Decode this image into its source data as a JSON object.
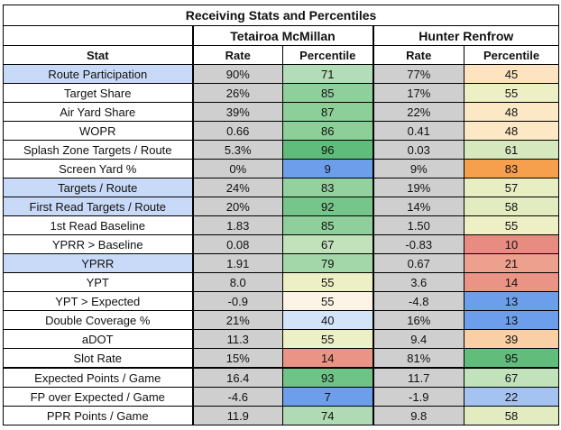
{
  "title": "Receiving Stats and Percentiles",
  "players": [
    "Tetairoa McMillan",
    "Hunter Renfrow"
  ],
  "columns": {
    "stat": "Stat",
    "p1_rate": "Rate",
    "p1_pct": "Percentile",
    "p2_rate": "Rate",
    "p2_pct": "Percentile"
  },
  "rows": [
    {
      "stat": "Route Participation",
      "hl": true,
      "p1_rate": "90%",
      "p1_pct": "71",
      "p1_color": "#b3dcb8",
      "p2_rate": "77%",
      "p2_pct": "45",
      "p2_color": "#fde3c0"
    },
    {
      "stat": "Target Share",
      "hl": false,
      "p1_rate": "26%",
      "p1_pct": "85",
      "p1_color": "#8fcf9b",
      "p2_rate": "17%",
      "p2_pct": "55",
      "p2_color": "#edefc4"
    },
    {
      "stat": "Air Yard Share",
      "hl": false,
      "p1_rate": "39%",
      "p1_pct": "87",
      "p1_color": "#8ccf99",
      "p2_rate": "22%",
      "p2_pct": "48",
      "p2_color": "#fde8c5"
    },
    {
      "stat": "WOPR",
      "hl": false,
      "p1_rate": "0.66",
      "p1_pct": "86",
      "p1_color": "#8ccf99",
      "p2_rate": "0.41",
      "p2_pct": "48",
      "p2_color": "#fde8c5"
    },
    {
      "stat": "Splash Zone Targets / Route",
      "hl": false,
      "p1_rate": "5.3%",
      "p1_pct": "96",
      "p1_color": "#5fbc7a",
      "p2_rate": "0.03",
      "p2_pct": "61",
      "p2_color": "#d6e8bd"
    },
    {
      "stat": "Screen Yard %",
      "hl": false,
      "p1_rate": "0%",
      "p1_pct": "9",
      "p1_color": "#6d9eeb",
      "p2_rate": "9%",
      "p2_pct": "83",
      "p2_color": "#f6a04d"
    },
    {
      "stat": "Targets / Route",
      "hl": true,
      "p1_rate": "24%",
      "p1_pct": "83",
      "p1_color": "#93d19e",
      "p2_rate": "19%",
      "p2_pct": "57",
      "p2_color": "#e6eec2"
    },
    {
      "stat": "First Read Targets / Route",
      "hl": true,
      "p1_rate": "20%",
      "p1_pct": "92",
      "p1_color": "#76c58a",
      "p2_rate": "14%",
      "p2_pct": "58",
      "p2_color": "#e2ecc0"
    },
    {
      "stat": "1st Read Baseline",
      "hl": false,
      "p1_rate": "1.83",
      "p1_pct": "85",
      "p1_color": "#8fcf9b",
      "p2_rate": "1.50",
      "p2_pct": "55",
      "p2_color": "#edefc4"
    },
    {
      "stat": "YPRR > Baseline",
      "hl": false,
      "p1_rate": "0.08",
      "p1_pct": "67",
      "p1_color": "#c2e2bb",
      "p2_rate": "-0.83",
      "p2_pct": "10",
      "p2_color": "#e88b80"
    },
    {
      "stat": "YPRR",
      "hl": true,
      "p1_rate": "1.91",
      "p1_pct": "79",
      "p1_color": "#a3d7a9",
      "p2_rate": "0.67",
      "p2_pct": "21",
      "p2_color": "#eea08f"
    },
    {
      "stat": "YPT",
      "hl": false,
      "p1_rate": "8.0",
      "p1_pct": "55",
      "p1_color": "#edefc4",
      "p2_rate": "3.6",
      "p2_pct": "14",
      "p2_color": "#ea9486"
    },
    {
      "stat": "YPT > Expected",
      "hl": false,
      "p1_rate": "-0.9",
      "p1_pct": "55",
      "p1_color": "#fef4e6",
      "p2_rate": "-4.8",
      "p2_pct": "13",
      "p2_color": "#6d9eeb"
    },
    {
      "stat": "Double Coverage %",
      "hl": false,
      "p1_rate": "21%",
      "p1_pct": "40",
      "p1_color": "#d3e3f8",
      "p2_rate": "16%",
      "p2_pct": "13",
      "p2_color": "#6d9eeb"
    },
    {
      "stat": "aDOT",
      "hl": false,
      "p1_rate": "11.3",
      "p1_pct": "55",
      "p1_color": "#edefc4",
      "p2_rate": "9.4",
      "p2_pct": "39",
      "p2_color": "#f9d0a5"
    },
    {
      "stat": "Slot Rate",
      "hl": false,
      "p1_rate": "15%",
      "p1_pct": "14",
      "p1_color": "#ea9486",
      "p2_rate": "81%",
      "p2_pct": "95",
      "p2_color": "#62bd7c"
    },
    {
      "stat": "Expected Points / Game",
      "hl": false,
      "p1_rate": "16.4",
      "p1_pct": "93",
      "p1_color": "#70c386",
      "p2_rate": "11.7",
      "p2_pct": "67",
      "p2_color": "#c2e2bb"
    },
    {
      "stat": "FP over Expected / Game",
      "hl": false,
      "p1_rate": "-4.6",
      "p1_pct": "7",
      "p1_color": "#6d9eeb",
      "p2_rate": "-1.9",
      "p2_pct": "22",
      "p2_color": "#a5c3f1"
    },
    {
      "stat": "PPR Points / Game",
      "hl": false,
      "p1_rate": "11.9",
      "p1_pct": "74",
      "p1_color": "#b0dab3",
      "p2_rate": "9.8",
      "p2_pct": "58",
      "p2_color": "#e2ecc0"
    }
  ]
}
